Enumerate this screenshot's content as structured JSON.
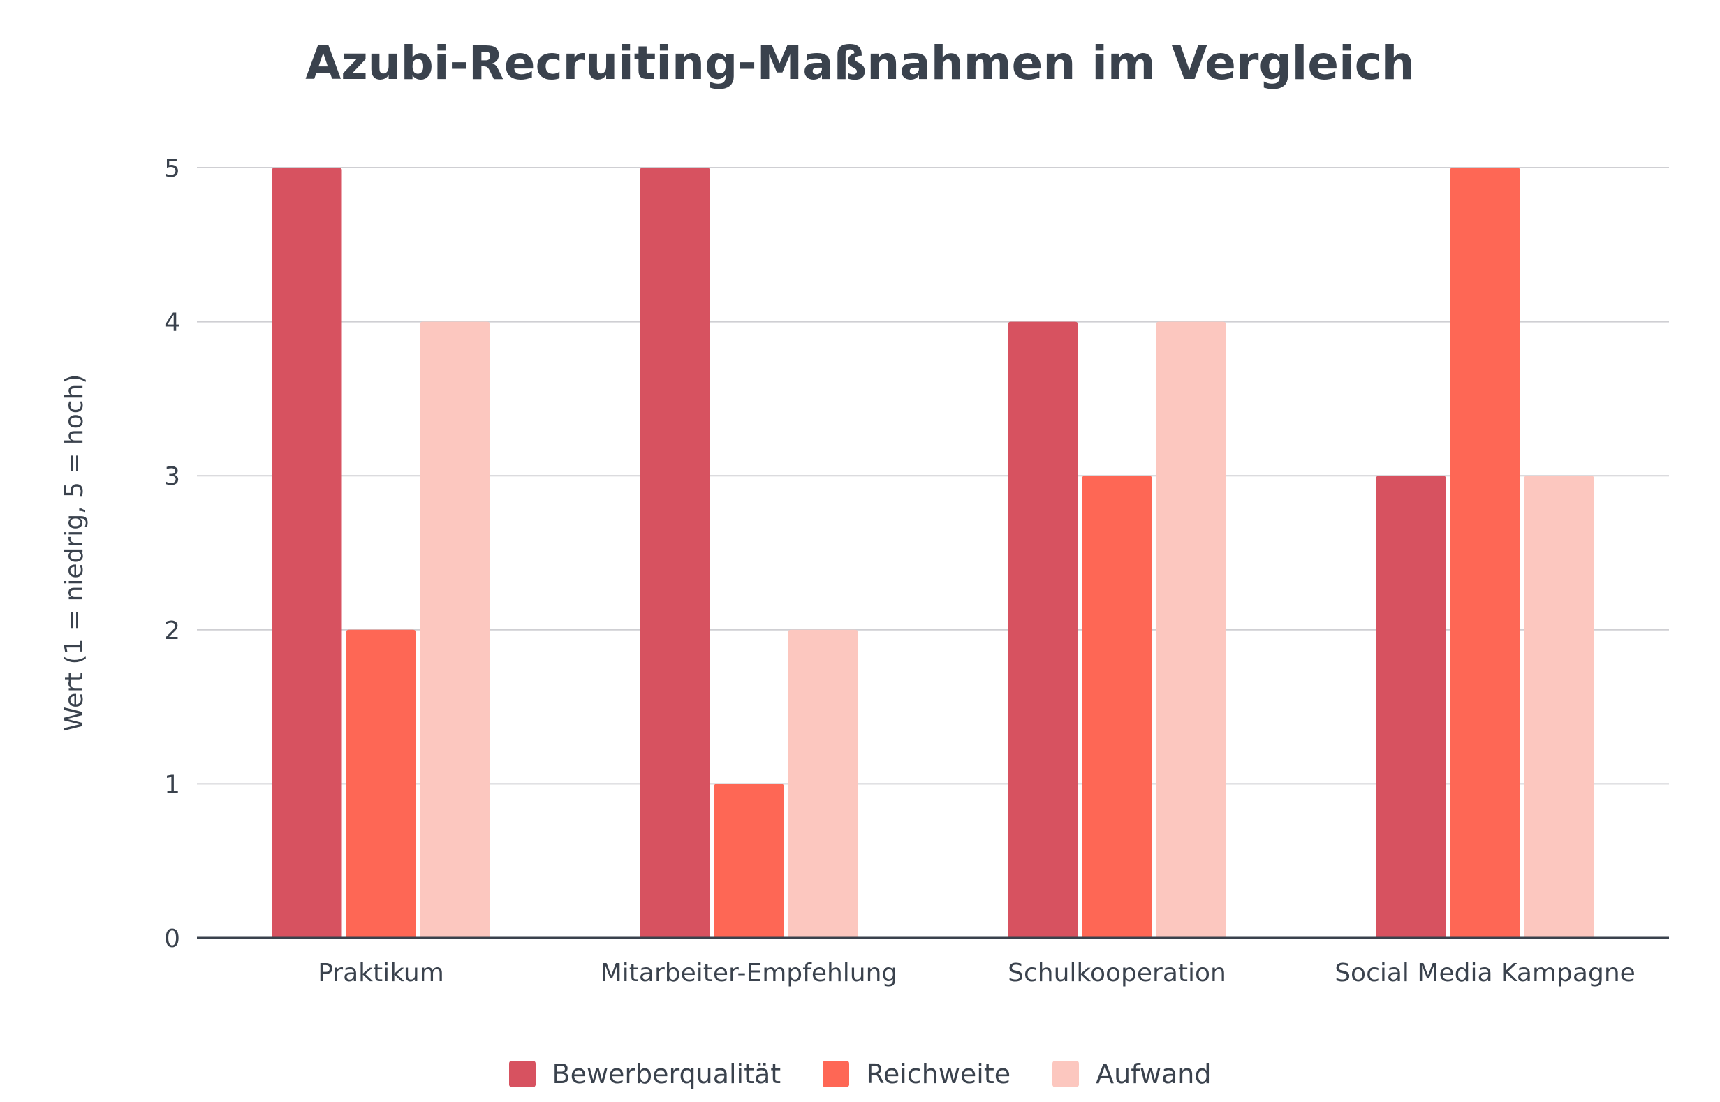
{
  "chart_data": {
    "type": "bar",
    "title": "Azubi-Recruiting-Maßnahmen im Vergleich",
    "xlabel": "",
    "ylabel": "Wert (1 = niedrig, 5 = hoch)",
    "ylim": [
      0,
      5
    ],
    "yticks": [
      "0",
      "1",
      "2",
      "3",
      "4",
      "5"
    ],
    "grid": true,
    "legend_position": "bottom",
    "categories": [
      "Praktikum",
      "Mitarbeiter-Empfehlung",
      "Schulkooperation",
      "Social Media Kampagne"
    ],
    "series": [
      {
        "name": "Bewerberqualität",
        "color": "#d75260",
        "values": [
          5,
          5,
          4,
          3
        ]
      },
      {
        "name": "Reichweite",
        "color": "#fe6755",
        "values": [
          2,
          1,
          3,
          5
        ]
      },
      {
        "name": "Aufwand",
        "color": "#fcc7bf",
        "values": [
          4,
          2,
          4,
          3
        ]
      }
    ]
  }
}
